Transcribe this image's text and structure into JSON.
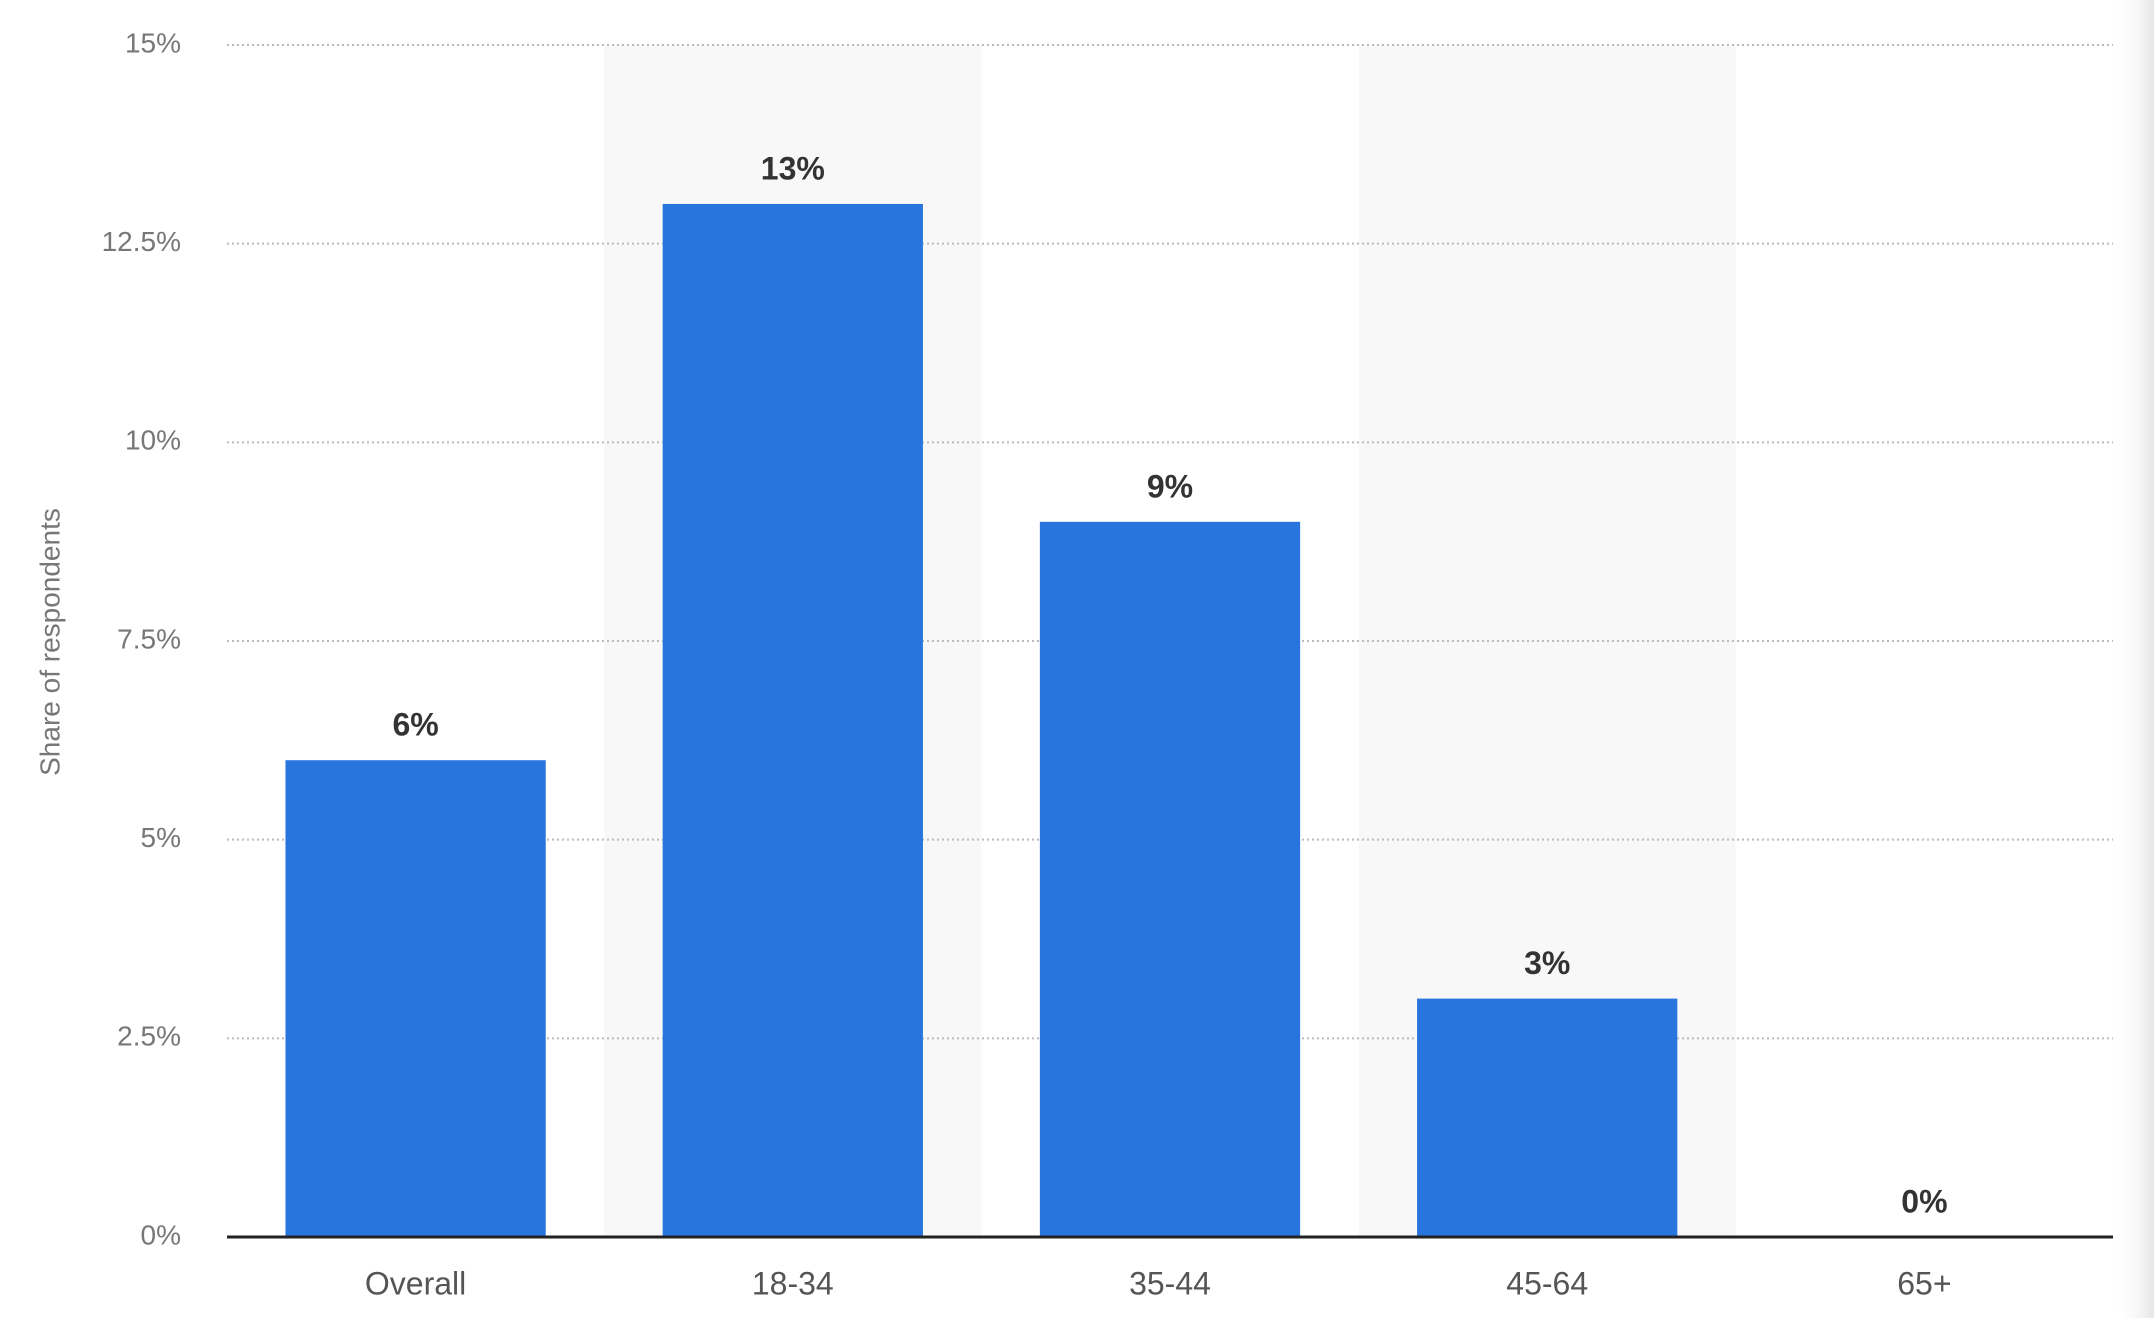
{
  "chart_data": {
    "type": "bar",
    "y_axis_label": "Share of respondents",
    "categories": [
      "Overall",
      "18-34",
      "35-44",
      "45-64",
      "65+"
    ],
    "values": [
      6,
      13,
      9,
      3,
      0
    ],
    "value_labels": [
      "6%",
      "13%",
      "9%",
      "3%",
      "0%"
    ],
    "color": "#2876dd",
    "ylim": [
      0,
      15
    ],
    "yticks": [
      {
        "value": 0,
        "label": "0%"
      },
      {
        "value": 2.5,
        "label": "2.5%"
      },
      {
        "value": 5,
        "label": "5%"
      },
      {
        "value": 7.5,
        "label": "7.5%"
      },
      {
        "value": 10,
        "label": "10%"
      },
      {
        "value": 12.5,
        "label": "12.5%"
      },
      {
        "value": 15,
        "label": "15%"
      }
    ],
    "grid": true
  }
}
